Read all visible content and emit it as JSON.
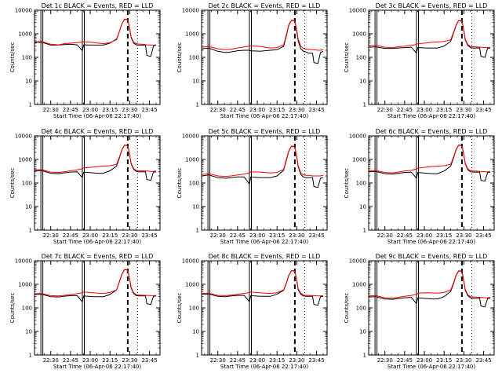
{
  "figure": {
    "description_type": "grid-of-light-curves",
    "black_color": "#000000",
    "red_color": "#ff0000"
  },
  "chart_data": {
    "type": "line",
    "shared": {
      "xlabel": "Start Time (06-Apr-06 22:17:40)",
      "ylabel": "Counts/sec",
      "x_tick_labels": [
        "22:30",
        "22:45",
        "23:00",
        "23:15",
        "23:30",
        "23:45"
      ],
      "x_ticks_min_after_22_00": [
        30,
        45,
        60,
        75,
        90,
        105
      ],
      "xlim_min_after_22_00": [
        17.67,
        113
      ],
      "yscale": "log",
      "ylim": [
        1,
        10000
      ],
      "y_tick_labels": [
        "1",
        "10",
        "100",
        "1000",
        "10000"
      ],
      "y_ticks": [
        1,
        10,
        100,
        1000,
        10000
      ],
      "legend_text": "BLACK = Events, RED = LLD",
      "series_names": [
        "Events",
        "LLD"
      ],
      "solid_vlines_min": [
        22.5,
        24.0,
        54.0,
        55.5
      ],
      "dashed_vline_min": 88.5,
      "dotted_vline_min": 96.0,
      "x_samples_min_after_22_00": [
        18,
        23,
        30,
        36,
        40,
        45,
        50,
        54,
        55,
        62,
        66,
        70,
        75,
        80,
        82,
        84,
        86,
        88,
        89,
        90,
        91,
        93,
        95,
        97,
        99,
        102,
        103,
        106,
        108,
        110
      ]
    },
    "panels": [
      {
        "title": "Det 1c",
        "events": [
          430,
          440,
          330,
          330,
          350,
          360,
          340,
          190,
          340,
          330,
          330,
          330,
          400,
          600,
          1200,
          2600,
          4100,
          4000,
          3000,
          1600,
          700,
          400,
          340,
          330,
          330,
          330,
          120,
          110,
          300,
          330
        ],
        "lld": [
          450,
          470,
          360,
          340,
          380,
          400,
          420,
          440,
          460,
          430,
          400,
          380,
          420,
          560,
          1200,
          2600,
          4200,
          4100,
          3100,
          1700,
          760,
          440,
          380,
          370,
          360,
          350,
          340,
          330,
          330,
          340
        ]
      },
      {
        "title": "Det 2c",
        "events": [
          230,
          250,
          180,
          160,
          170,
          190,
          200,
          200,
          190,
          180,
          190,
          200,
          210,
          290,
          800,
          2400,
          3700,
          3600,
          2500,
          1200,
          500,
          230,
          180,
          170,
          150,
          150,
          60,
          55,
          160,
          180
        ],
        "lld": [
          270,
          290,
          230,
          210,
          220,
          250,
          280,
          300,
          310,
          290,
          270,
          250,
          260,
          340,
          900,
          2500,
          3800,
          3700,
          2700,
          1400,
          600,
          300,
          240,
          220,
          220,
          210,
          210,
          200,
          200,
          210
        ]
      },
      {
        "title": "Det 3c",
        "events": [
          270,
          280,
          240,
          240,
          250,
          260,
          270,
          150,
          260,
          250,
          250,
          250,
          300,
          480,
          1000,
          2200,
          3600,
          3500,
          2600,
          1300,
          550,
          320,
          260,
          250,
          250,
          250,
          110,
          100,
          240,
          250
        ],
        "lld": [
          310,
          320,
          270,
          260,
          280,
          300,
          320,
          350,
          380,
          410,
          440,
          450,
          470,
          560,
          1100,
          2300,
          3700,
          3600,
          2700,
          1400,
          600,
          350,
          290,
          280,
          280,
          270,
          270,
          260,
          260,
          270
        ]
      },
      {
        "title": "Det 4c",
        "events": [
          330,
          340,
          260,
          250,
          270,
          290,
          300,
          170,
          290,
          270,
          260,
          260,
          330,
          520,
          1100,
          2500,
          4000,
          3900,
          2900,
          1500,
          650,
          380,
          310,
          300,
          300,
          300,
          140,
          130,
          290,
          300
        ],
        "lld": [
          360,
          370,
          290,
          280,
          300,
          330,
          360,
          400,
          440,
          470,
          500,
          520,
          540,
          620,
          1200,
          2600,
          4100,
          4000,
          3000,
          1600,
          700,
          410,
          340,
          330,
          330,
          320,
          320,
          310,
          310,
          320
        ]
      },
      {
        "title": "Det 5c",
        "events": [
          200,
          220,
          170,
          160,
          170,
          180,
          180,
          90,
          180,
          170,
          170,
          170,
          200,
          350,
          900,
          2300,
          3600,
          3500,
          2500,
          1200,
          500,
          230,
          180,
          170,
          170,
          170,
          70,
          65,
          160,
          170
        ],
        "lld": [
          230,
          250,
          200,
          190,
          200,
          220,
          240,
          270,
          300,
          290,
          280,
          270,
          280,
          380,
          1000,
          2400,
          3700,
          3600,
          2600,
          1300,
          560,
          270,
          220,
          210,
          210,
          200,
          200,
          200,
          200,
          210
        ]
      },
      {
        "title": "Det 6c",
        "events": [
          300,
          310,
          250,
          240,
          260,
          280,
          290,
          160,
          280,
          260,
          250,
          250,
          320,
          520,
          1100,
          2500,
          4000,
          3900,
          2900,
          1500,
          650,
          370,
          300,
          290,
          290,
          290,
          130,
          120,
          280,
          290
        ],
        "lld": [
          330,
          340,
          280,
          270,
          290,
          320,
          350,
          390,
          430,
          470,
          500,
          520,
          540,
          620,
          1200,
          2600,
          4100,
          4000,
          3000,
          1600,
          700,
          400,
          330,
          320,
          320,
          310,
          310,
          300,
          300,
          310
        ]
      },
      {
        "title": "Det 7c",
        "events": [
          370,
          380,
          300,
          290,
          310,
          330,
          330,
          180,
          320,
          300,
          300,
          300,
          370,
          580,
          1200,
          2600,
          4200,
          4100,
          3000,
          1600,
          700,
          400,
          330,
          320,
          320,
          320,
          150,
          140,
          310,
          320
        ],
        "lld": [
          400,
          410,
          330,
          320,
          340,
          370,
          400,
          440,
          470,
          440,
          420,
          410,
          450,
          580,
          1250,
          2700,
          4300,
          4200,
          3100,
          1700,
          760,
          440,
          360,
          350,
          350,
          340,
          340,
          330,
          330,
          340
        ]
      },
      {
        "title": "Det 8c",
        "events": [
          380,
          390,
          310,
          300,
          320,
          340,
          340,
          180,
          330,
          310,
          310,
          310,
          380,
          560,
          1100,
          2400,
          3800,
          3700,
          2700,
          1400,
          600,
          380,
          320,
          310,
          310,
          310,
          140,
          130,
          300,
          310
        ],
        "lld": [
          410,
          420,
          340,
          330,
          350,
          380,
          410,
          450,
          470,
          440,
          420,
          410,
          440,
          580,
          1150,
          2500,
          3900,
          3800,
          2800,
          1500,
          660,
          420,
          350,
          340,
          340,
          330,
          330,
          320,
          320,
          330
        ]
      },
      {
        "title": "Det 9c",
        "events": [
          290,
          300,
          240,
          230,
          250,
          270,
          280,
          150,
          270,
          250,
          240,
          240,
          300,
          500,
          1000,
          2300,
          3700,
          3600,
          2600,
          1300,
          560,
          330,
          270,
          260,
          260,
          260,
          120,
          110,
          250,
          260
        ],
        "lld": [
          320,
          330,
          270,
          260,
          280,
          310,
          340,
          380,
          420,
          440,
          430,
          420,
          450,
          580,
          1100,
          2400,
          3800,
          3700,
          2700,
          1400,
          620,
          360,
          300,
          290,
          290,
          280,
          280,
          270,
          270,
          280
        ]
      }
    ]
  }
}
